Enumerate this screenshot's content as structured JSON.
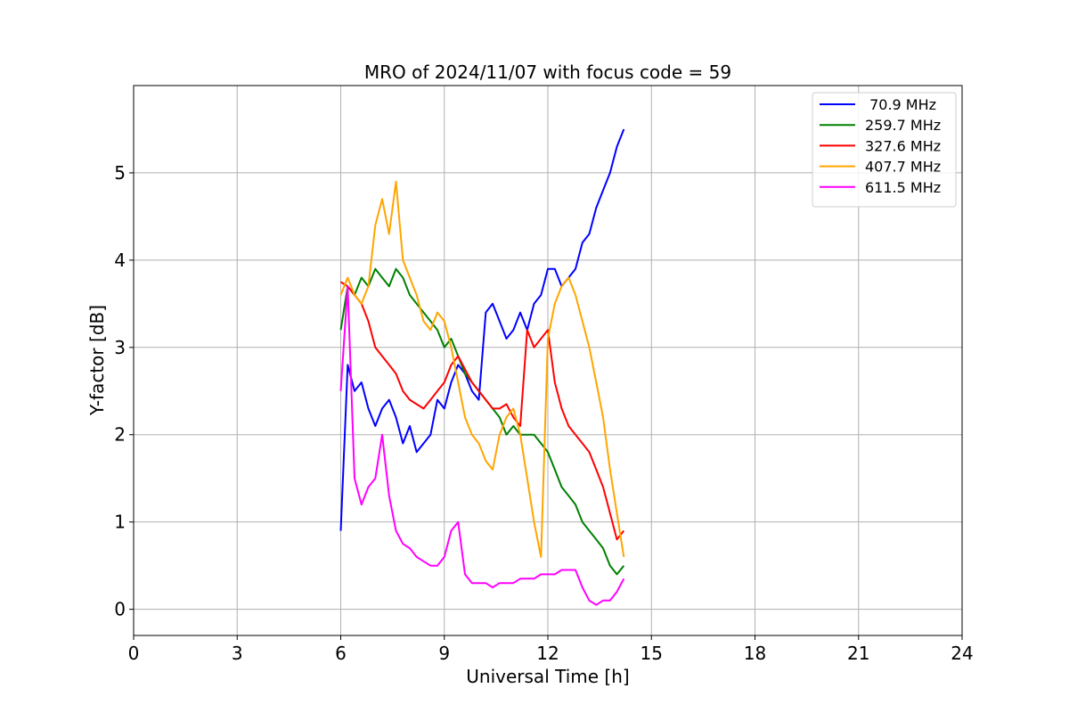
{
  "chart_data": {
    "type": "line",
    "title": "MRO of 2024/11/07 with focus code = 59",
    "xlabel": "Universal Time [h]",
    "ylabel": "Y-factor [dB]",
    "xlim": [
      0,
      24
    ],
    "ylim": [
      -0.3,
      6.0
    ],
    "xticks": [
      0,
      3,
      6,
      9,
      12,
      15,
      18,
      21,
      24
    ],
    "yticks": [
      0,
      1,
      2,
      3,
      4,
      5
    ],
    "grid": true,
    "legend_position": "top-right",
    "series": [
      {
        "name": " 70.9 MHz",
        "color": "#0000ff",
        "x": [
          6.0,
          6.2,
          6.4,
          6.6,
          6.8,
          7.0,
          7.2,
          7.4,
          7.6,
          7.8,
          8.0,
          8.2,
          8.4,
          8.6,
          8.8,
          9.0,
          9.2,
          9.4,
          9.6,
          9.8,
          10.0,
          10.2,
          10.4,
          10.6,
          10.8,
          11.0,
          11.2,
          11.4,
          11.6,
          11.8,
          12.0,
          12.2,
          12.4,
          12.6,
          12.8,
          13.0,
          13.2,
          13.4,
          13.6,
          13.8,
          14.0,
          14.2
        ],
        "y": [
          0.9,
          2.8,
          2.5,
          2.6,
          2.3,
          2.1,
          2.3,
          2.4,
          2.2,
          1.9,
          2.1,
          1.8,
          1.9,
          2.0,
          2.4,
          2.3,
          2.6,
          2.8,
          2.7,
          2.5,
          2.4,
          3.4,
          3.5,
          3.3,
          3.1,
          3.2,
          3.4,
          3.2,
          3.5,
          3.6,
          3.9,
          3.9,
          3.7,
          3.8,
          3.9,
          4.2,
          4.3,
          4.6,
          4.8,
          5.0,
          5.3,
          5.5
        ]
      },
      {
        "name": "259.7 MHz",
        "color": "#008000",
        "x": [
          6.0,
          6.2,
          6.4,
          6.6,
          6.8,
          7.0,
          7.2,
          7.4,
          7.6,
          7.8,
          8.0,
          8.2,
          8.4,
          8.6,
          8.8,
          9.0,
          9.2,
          9.4,
          9.6,
          9.8,
          10.0,
          10.2,
          10.4,
          10.6,
          10.8,
          11.0,
          11.2,
          11.4,
          11.6,
          11.8,
          12.0,
          12.2,
          12.4,
          12.6,
          12.8,
          13.0,
          13.2,
          13.4,
          13.6,
          13.8,
          14.0,
          14.2
        ],
        "y": [
          3.2,
          3.7,
          3.6,
          3.8,
          3.7,
          3.9,
          3.8,
          3.7,
          3.9,
          3.8,
          3.6,
          3.5,
          3.4,
          3.3,
          3.2,
          3.0,
          3.1,
          2.9,
          2.7,
          2.6,
          2.5,
          2.4,
          2.3,
          2.2,
          2.0,
          2.1,
          2.0,
          2.0,
          2.0,
          1.9,
          1.8,
          1.6,
          1.4,
          1.3,
          1.2,
          1.0,
          0.9,
          0.8,
          0.7,
          0.5,
          0.4,
          0.5
        ]
      },
      {
        "name": "327.6 MHz",
        "color": "#ff0000",
        "x": [
          6.0,
          6.2,
          6.4,
          6.6,
          6.8,
          7.0,
          7.2,
          7.4,
          7.6,
          7.8,
          8.0,
          8.2,
          8.4,
          8.6,
          8.8,
          9.0,
          9.2,
          9.4,
          9.6,
          9.8,
          10.0,
          10.2,
          10.4,
          10.6,
          10.8,
          11.0,
          11.2,
          11.4,
          11.6,
          11.8,
          12.0,
          12.2,
          12.4,
          12.6,
          12.8,
          13.0,
          13.2,
          13.4,
          13.6,
          13.8,
          14.0,
          14.2
        ],
        "y": [
          3.75,
          3.7,
          3.6,
          3.5,
          3.3,
          3.0,
          2.9,
          2.8,
          2.7,
          2.5,
          2.4,
          2.35,
          2.3,
          2.4,
          2.5,
          2.6,
          2.8,
          2.9,
          2.75,
          2.6,
          2.5,
          2.4,
          2.3,
          2.3,
          2.35,
          2.2,
          2.1,
          3.2,
          3.0,
          3.1,
          3.2,
          2.6,
          2.3,
          2.1,
          2.0,
          1.9,
          1.8,
          1.6,
          1.4,
          1.1,
          0.8,
          0.9
        ]
      },
      {
        "name": "407.7 MHz",
        "color": "#ffa500",
        "x": [
          6.0,
          6.2,
          6.4,
          6.6,
          6.8,
          7.0,
          7.2,
          7.4,
          7.6,
          7.8,
          8.0,
          8.2,
          8.4,
          8.6,
          8.8,
          9.0,
          9.2,
          9.4,
          9.6,
          9.8,
          10.0,
          10.2,
          10.4,
          10.6,
          10.8,
          11.0,
          11.2,
          11.4,
          11.6,
          11.8,
          12.0,
          12.2,
          12.4,
          12.6,
          12.8,
          13.0,
          13.2,
          13.4,
          13.6,
          13.8,
          14.0,
          14.2
        ],
        "y": [
          3.6,
          3.8,
          3.6,
          3.5,
          3.7,
          4.4,
          4.7,
          4.3,
          4.9,
          4.0,
          3.8,
          3.6,
          3.3,
          3.2,
          3.4,
          3.3,
          3.0,
          2.6,
          2.2,
          2.0,
          1.9,
          1.7,
          1.6,
          2.0,
          2.2,
          2.3,
          2.0,
          1.5,
          1.0,
          0.6,
          3.1,
          3.5,
          3.7,
          3.8,
          3.6,
          3.3,
          3.0,
          2.6,
          2.2,
          1.6,
          1.1,
          0.6
        ]
      },
      {
        "name": "611.5 MHz",
        "color": "#ff00ff",
        "x": [
          6.0,
          6.2,
          6.4,
          6.6,
          6.8,
          7.0,
          7.2,
          7.4,
          7.6,
          7.8,
          8.0,
          8.2,
          8.4,
          8.6,
          8.8,
          9.0,
          9.2,
          9.4,
          9.6,
          9.8,
          10.0,
          10.2,
          10.4,
          10.6,
          10.8,
          11.0,
          11.2,
          11.4,
          11.6,
          11.8,
          12.0,
          12.2,
          12.4,
          12.6,
          12.8,
          13.0,
          13.2,
          13.4,
          13.6,
          13.8,
          14.0,
          14.2
        ],
        "y": [
          2.5,
          3.7,
          1.5,
          1.2,
          1.4,
          1.5,
          2.0,
          1.3,
          0.9,
          0.75,
          0.7,
          0.6,
          0.55,
          0.5,
          0.5,
          0.6,
          0.9,
          1.0,
          0.4,
          0.3,
          0.3,
          0.3,
          0.25,
          0.3,
          0.3,
          0.3,
          0.35,
          0.35,
          0.35,
          0.4,
          0.4,
          0.4,
          0.45,
          0.45,
          0.45,
          0.25,
          0.1,
          0.05,
          0.1,
          0.1,
          0.2,
          0.35
        ]
      }
    ]
  }
}
